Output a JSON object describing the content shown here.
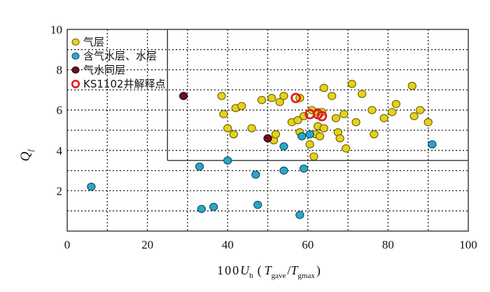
{
  "chart_data": {
    "type": "scatter",
    "xlim": [
      0,
      100
    ],
    "ylim": [
      0,
      10
    ],
    "xticks": [
      0,
      20,
      40,
      60,
      80,
      100
    ],
    "yticks": [
      2,
      4,
      6,
      8,
      10
    ],
    "grid": true,
    "xlabel": {
      "prefix": "100",
      "var": "U",
      "var_sub": "h",
      "open": "(",
      "t1": "T",
      "t1_sub": "gave",
      "slash": "/",
      "t2": "T",
      "t2_sub": "gmax",
      "close": ")"
    },
    "ylabel": {
      "var": "Q",
      "sub": "f"
    },
    "legend_position": "top-left",
    "cutoff": {
      "x": 25,
      "y": 3.5
    },
    "series": [
      {
        "name": "气层",
        "color": "#e6d21c",
        "stroke": "#6b6000",
        "marker": "disk",
        "points": [
          [
            38.5,
            6.7
          ],
          [
            39,
            5.8
          ],
          [
            40,
            5.1
          ],
          [
            41.5,
            4.8
          ],
          [
            42,
            6.1
          ],
          [
            43.5,
            6.2
          ],
          [
            46,
            5.1
          ],
          [
            48.5,
            6.5
          ],
          [
            51,
            6.6
          ],
          [
            51.5,
            4.5
          ],
          [
            52,
            4.8
          ],
          [
            53,
            6.4
          ],
          [
            54,
            6.7
          ],
          [
            56,
            5.4
          ],
          [
            57.5,
            5.5
          ],
          [
            58,
            6.6
          ],
          [
            58,
            4.9
          ],
          [
            59,
            5.7
          ],
          [
            60.5,
            4.3
          ],
          [
            61,
            6.0
          ],
          [
            61.5,
            3.7
          ],
          [
            62,
            4.8
          ],
          [
            62.5,
            5.2
          ],
          [
            62.5,
            5.9
          ],
          [
            63,
            4.7
          ],
          [
            63.5,
            5.9
          ],
          [
            64,
            5.1
          ],
          [
            64,
            7.1
          ],
          [
            66,
            6.7
          ],
          [
            67,
            5.6
          ],
          [
            67.5,
            4.9
          ],
          [
            68,
            4.6
          ],
          [
            69,
            5.8
          ],
          [
            69.5,
            4.1
          ],
          [
            71,
            7.3
          ],
          [
            72,
            5.4
          ],
          [
            73.5,
            6.8
          ],
          [
            76,
            6.0
          ],
          [
            76.5,
            4.8
          ],
          [
            79,
            5.6
          ],
          [
            81,
            5.9
          ],
          [
            82,
            6.3
          ],
          [
            86,
            7.2
          ],
          [
            86.5,
            5.7
          ],
          [
            88,
            6.0
          ],
          [
            90,
            5.4
          ]
        ]
      },
      {
        "name": "含气水层、水层",
        "color": "#2aa6c9",
        "stroke": "#0e4d66",
        "marker": "disk",
        "points": [
          [
            6,
            2.2
          ],
          [
            33,
            3.2
          ],
          [
            33.5,
            1.1
          ],
          [
            36.5,
            1.2
          ],
          [
            40,
            3.5
          ],
          [
            47,
            2.8
          ],
          [
            47.5,
            1.3
          ],
          [
            54,
            4.2
          ],
          [
            54,
            3.0
          ],
          [
            58,
            0.8
          ],
          [
            58.5,
            4.7
          ],
          [
            59,
            3.1
          ],
          [
            60.5,
            4.8
          ],
          [
            91,
            4.3
          ]
        ]
      },
      {
        "name": "气水同层",
        "color": "#6b1020",
        "stroke": "#2a0008",
        "marker": "disk",
        "points": [
          [
            29,
            6.7
          ],
          [
            50,
            4.6
          ]
        ]
      },
      {
        "name": "KS1102井解释点",
        "color": "none",
        "stroke": "#e02020",
        "marker": "ring",
        "points": [
          [
            57,
            6.6
          ],
          [
            60.5,
            5.8
          ],
          [
            62.5,
            5.8
          ],
          [
            63.5,
            5.7
          ]
        ]
      }
    ]
  }
}
